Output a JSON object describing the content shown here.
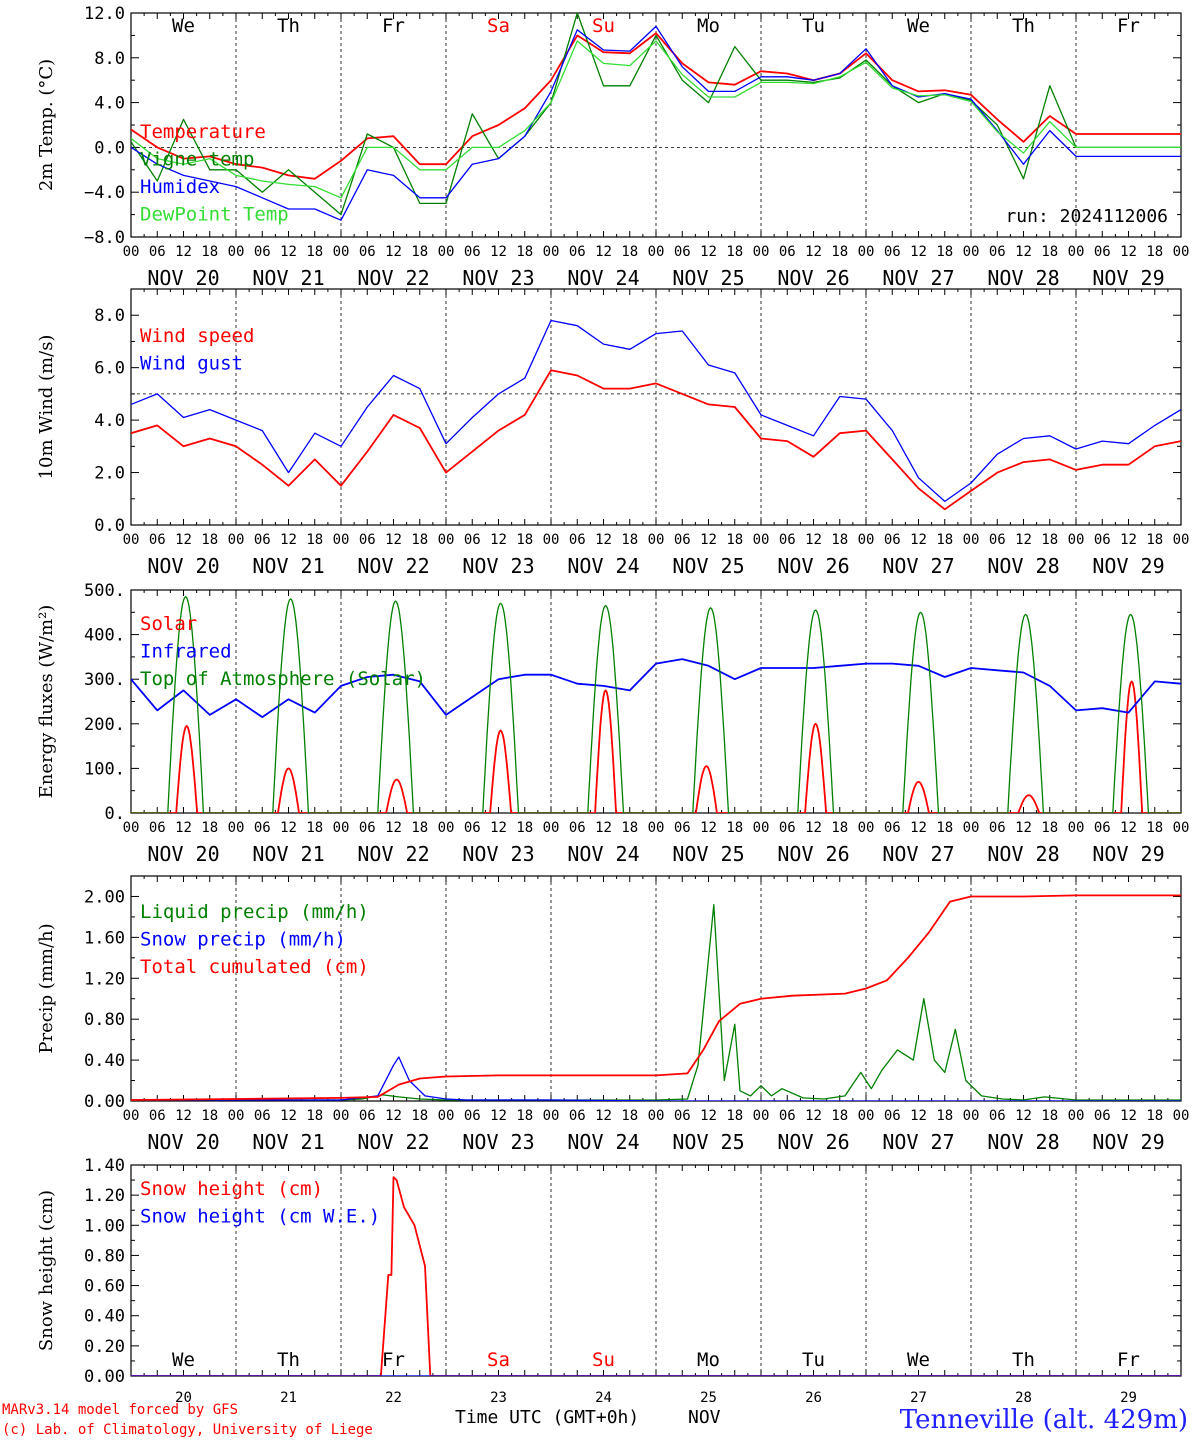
{
  "colors": {
    "red": "#ff0000",
    "green": "#008000",
    "blue": "#0000ff",
    "lime": "#33dd33",
    "axis": "#000000",
    "station": "#2020ff"
  },
  "x_axis": {
    "hour_ticks": [
      "00",
      "06",
      "12",
      "18"
    ],
    "date_labels": [
      "NOV 20",
      "NOV 21",
      "NOV 22",
      "NOV 23",
      "NOV 24",
      "NOV 25",
      "NOV 26",
      "NOV 27",
      "NOV 28",
      "NOV 29"
    ],
    "weekdays": [
      "We",
      "Th",
      "Fr",
      "Sa",
      "Su",
      "Mo",
      "Tu",
      "We",
      "Th",
      "Fr"
    ],
    "weekend": [
      false,
      false,
      false,
      true,
      true,
      false,
      false,
      false,
      false,
      false
    ],
    "day_numbers": [
      "20",
      "21",
      "22",
      "23",
      "24",
      "25",
      "26",
      "27",
      "28",
      "29"
    ],
    "xlabel": "Time UTC (GMT+0h)",
    "month": "NOV"
  },
  "footer": {
    "model": "MARv3.14 model forced by GFS",
    "credit": "(c) Lab. of Climatology, University of Liege",
    "station": "Tenneville (alt. 429m)"
  },
  "chart_data": [
    {
      "type": "line",
      "ylabel": "2m Temp. (°C)",
      "yticks": [
        "12.0",
        "8.0",
        "4.0",
        "0.0",
        "−4.0",
        "−8.0"
      ],
      "ylim": [
        -8,
        12
      ],
      "reference_line": 0,
      "annotation": "run: 2024112006",
      "series": [
        {
          "name": "Temperature",
          "color": "#ff0000",
          "x_days": [
            0,
            0.25,
            0.5,
            0.75,
            1,
            1.25,
            1.5,
            1.75,
            2,
            2.25,
            2.5,
            2.75,
            3,
            3.25,
            3.5,
            3.75,
            4,
            4.25,
            4.5,
            4.75,
            5,
            5.25,
            5.5,
            5.75,
            6,
            6.25,
            6.5,
            6.75,
            7,
            7.25,
            7.5,
            7.75,
            8,
            8.25,
            8.5,
            8.75,
            9,
            9.25,
            9.5,
            9.75,
            10
          ],
          "values": [
            1.6,
            0,
            -1,
            -0.8,
            -1.5,
            -1.8,
            -2.5,
            -2.8,
            -1.2,
            0.8,
            1,
            -1.5,
            -1.5,
            1,
            2,
            3.5,
            6,
            10,
            8.5,
            8.4,
            10.2,
            7.5,
            5.8,
            5.6,
            6.8,
            6.6,
            6,
            6.6,
            8.4,
            6,
            5,
            5.1,
            4.7,
            2.5,
            0.5,
            2.8,
            1.2,
            1.2,
            1.2,
            1.2,
            1.2
          ]
        },
        {
          "name": "Vigne temp",
          "color": "#008000",
          "x_days": [
            0,
            0.25,
            0.5,
            0.75,
            1,
            1.25,
            1.5,
            1.75,
            2,
            2.25,
            2.5,
            2.75,
            3,
            3.25,
            3.5,
            3.75,
            4,
            4.25,
            4.5,
            4.75,
            5,
            5.25,
            5.5,
            5.75,
            6,
            6.25,
            6.5,
            6.75,
            7,
            7.25,
            7.5,
            7.75,
            8,
            8.25,
            8.5,
            8.75,
            9,
            9.25,
            9.5,
            9.75,
            10
          ],
          "values": [
            0.5,
            -3,
            2.5,
            -2,
            -2,
            -4,
            -2,
            -4,
            -6,
            1.2,
            0,
            -5,
            -5,
            3,
            -1,
            1,
            4,
            12,
            5.5,
            5.5,
            10,
            6,
            4,
            9,
            6,
            6,
            5.8,
            6.2,
            7.8,
            5.5,
            4,
            4.8,
            4.2,
            2,
            -2.8,
            5.5,
            0,
            0,
            0,
            0,
            0
          ]
        },
        {
          "name": "Humidex",
          "color": "#0000ff",
          "x_days": [
            0,
            0.25,
            0.5,
            0.75,
            1,
            1.25,
            1.5,
            1.75,
            2,
            2.25,
            2.5,
            2.75,
            3,
            3.25,
            3.5,
            3.75,
            4,
            4.25,
            4.5,
            4.75,
            5,
            5.25,
            5.5,
            5.75,
            6,
            6.25,
            6.5,
            6.75,
            7,
            7.25,
            7.5,
            7.75,
            8,
            8.25,
            8.5,
            8.75,
            9,
            9.25,
            9.5,
            9.75,
            10
          ],
          "values": [
            0,
            -1.5,
            -2.5,
            -3,
            -3.5,
            -4.5,
            -5.5,
            -5.5,
            -6.5,
            -2,
            -2.5,
            -4.5,
            -4.5,
            -1.5,
            -1,
            1,
            5,
            10.5,
            8.7,
            8.6,
            10.8,
            7.2,
            5,
            5,
            6.3,
            6.3,
            6,
            6.6,
            8.8,
            5.5,
            4.5,
            4.8,
            4.3,
            1.5,
            -1.5,
            1.5,
            -0.8,
            -0.8,
            -0.8,
            -0.8,
            -0.8
          ]
        },
        {
          "name": "DewPoint Temp",
          "color": "#33dd33",
          "x_days": [
            0,
            0.25,
            0.5,
            0.75,
            1,
            1.25,
            1.5,
            1.75,
            2,
            2.25,
            2.5,
            2.75,
            3,
            3.25,
            3.5,
            3.75,
            4,
            4.25,
            4.5,
            4.75,
            5,
            5.25,
            5.5,
            5.75,
            6,
            6.25,
            6.5,
            6.75,
            7,
            7.25,
            7.5,
            7.75,
            8,
            8.25,
            8.5,
            8.75,
            9,
            9.25,
            9.5,
            9.75,
            10
          ],
          "values": [
            0.8,
            -1,
            -1.5,
            -1,
            -2.5,
            -3,
            -3.3,
            -3.5,
            -4.5,
            0,
            0,
            -2,
            -2,
            0,
            0,
            1.5,
            4,
            9.5,
            7.5,
            7.3,
            9.5,
            6.5,
            4.5,
            4.5,
            5.8,
            5.8,
            5.7,
            6.3,
            7.6,
            5.3,
            4.6,
            4.7,
            4.1,
            1.4,
            -0.5,
            2.3,
            0,
            0,
            0,
            0,
            0
          ]
        }
      ]
    },
    {
      "type": "line",
      "ylabel": "10m Wind (m/s)",
      "yticks": [
        "8.0",
        "6.0",
        "4.0",
        "2.0",
        "0.0"
      ],
      "ylim": [
        0,
        9
      ],
      "reference_line": 5,
      "series": [
        {
          "name": "Wind speed",
          "color": "#ff0000",
          "x_days": [
            0,
            0.25,
            0.5,
            0.75,
            1,
            1.25,
            1.5,
            1.75,
            2,
            2.25,
            2.5,
            2.75,
            3,
            3.25,
            3.5,
            3.75,
            4,
            4.25,
            4.5,
            4.75,
            5,
            5.25,
            5.5,
            5.75,
            6,
            6.25,
            6.5,
            6.75,
            7,
            7.25,
            7.5,
            7.75,
            8,
            8.25,
            8.5,
            8.75,
            9,
            9.25,
            9.5,
            9.75,
            10
          ],
          "values": [
            3.5,
            3.8,
            3,
            3.3,
            3,
            2.3,
            1.5,
            2.5,
            1.5,
            2.8,
            4.2,
            3.7,
            2,
            2.8,
            3.6,
            4.2,
            5.9,
            5.7,
            5.2,
            5.2,
            5.4,
            5,
            4.6,
            4.5,
            3.3,
            3.2,
            2.6,
            3.5,
            3.6,
            2.5,
            1.4,
            0.6,
            1.3,
            2,
            2.4,
            2.5,
            2.1,
            2.3,
            2.3,
            3,
            3.2
          ]
        },
        {
          "name": "Wind gust",
          "color": "#0000ff",
          "x_days": [
            0,
            0.25,
            0.5,
            0.75,
            1,
            1.25,
            1.5,
            1.75,
            2,
            2.25,
            2.5,
            2.75,
            3,
            3.25,
            3.5,
            3.75,
            4,
            4.25,
            4.5,
            4.75,
            5,
            5.25,
            5.5,
            5.75,
            6,
            6.25,
            6.5,
            6.75,
            7,
            7.25,
            7.5,
            7.75,
            8,
            8.25,
            8.5,
            8.75,
            9,
            9.25,
            9.5,
            9.75,
            10
          ],
          "values": [
            4.6,
            5,
            4.1,
            4.4,
            4,
            3.6,
            2,
            3.5,
            3,
            4.5,
            5.7,
            5.2,
            3.1,
            4.1,
            5,
            5.6,
            7.8,
            7.6,
            6.9,
            6.7,
            7.3,
            7.4,
            6.1,
            5.8,
            4.2,
            3.8,
            3.4,
            4.9,
            4.8,
            3.6,
            1.8,
            0.9,
            1.6,
            2.7,
            3.3,
            3.4,
            2.9,
            3.2,
            3.1,
            3.8,
            4.4
          ]
        }
      ]
    },
    {
      "type": "line",
      "ylabel": "Energy fluxes (W/m²)",
      "yticks": [
        "500.",
        "400.",
        "300.",
        "200.",
        "100.",
        "0."
      ],
      "ylim": [
        0,
        500
      ],
      "series": [
        {
          "name": "Solar",
          "color": "#ff0000",
          "peak_times_days": [
            0.53,
            1.5,
            2.53,
            3.52,
            4.52,
            5.48,
            6.52,
            7.5,
            8.55,
            9.53
          ],
          "peaks": [
            195,
            100,
            75,
            185,
            275,
            105,
            200,
            70,
            40,
            295
          ],
          "half_width_days": 0.1
        },
        {
          "name": "Infrared",
          "color": "#0000ff",
          "x_days": [
            0,
            0.25,
            0.5,
            0.75,
            1,
            1.25,
            1.5,
            1.75,
            2,
            2.25,
            2.5,
            2.75,
            3,
            3.25,
            3.5,
            3.75,
            4,
            4.25,
            4.5,
            4.75,
            5,
            5.25,
            5.5,
            5.75,
            6,
            6.25,
            6.5,
            6.75,
            7,
            7.25,
            7.5,
            7.75,
            8,
            8.25,
            8.5,
            8.75,
            9,
            9.25,
            9.5,
            9.75,
            10
          ],
          "values": [
            300,
            230,
            275,
            220,
            255,
            215,
            255,
            225,
            285,
            305,
            310,
            295,
            220,
            260,
            300,
            310,
            310,
            290,
            285,
            275,
            335,
            345,
            330,
            300,
            325,
            325,
            325,
            330,
            335,
            335,
            330,
            305,
            325,
            320,
            315,
            285,
            230,
            235,
            225,
            295,
            290
          ]
        },
        {
          "name": "Top of Atmosphere (Solar)",
          "color": "#008000",
          "peak_times_days": [
            0.52,
            1.52,
            2.52,
            3.52,
            4.52,
            5.52,
            6.52,
            7.52,
            8.52,
            9.52
          ],
          "peaks": [
            485,
            480,
            475,
            470,
            465,
            460,
            455,
            450,
            445,
            445
          ],
          "half_width_days": 0.17
        }
      ]
    },
    {
      "type": "line",
      "ylabel": "Precip (mm/h)",
      "yticks": [
        "2.00",
        "1.60",
        "1.20",
        "0.80",
        "0.40",
        "0.00"
      ],
      "ylim": [
        0,
        2.2
      ],
      "series": [
        {
          "name": "Liquid precip (mm/h)",
          "color": "#008000",
          "x_days": [
            0,
            0.5,
            1,
            1.5,
            2,
            2.2,
            2.4,
            2.55,
            2.75,
            3,
            3.5,
            4,
            4.5,
            5,
            5.3,
            5.4,
            5.55,
            5.65,
            5.75,
            5.8,
            5.9,
            6.0,
            6.1,
            6.2,
            6.4,
            6.6,
            6.8,
            6.95,
            7.05,
            7.15,
            7.3,
            7.45,
            7.55,
            7.65,
            7.75,
            7.85,
            7.95,
            8.1,
            8.3,
            8.5,
            8.7,
            9,
            9.5,
            10
          ],
          "values": [
            0.01,
            0.01,
            0.01,
            0.01,
            0.01,
            0.02,
            0.06,
            0.04,
            0.02,
            0.01,
            0.01,
            0.01,
            0.01,
            0.01,
            0.02,
            0.35,
            1.92,
            0.2,
            0.75,
            0.1,
            0.05,
            0.15,
            0.05,
            0.12,
            0.03,
            0.02,
            0.05,
            0.28,
            0.12,
            0.3,
            0.5,
            0.4,
            1.0,
            0.4,
            0.28,
            0.7,
            0.2,
            0.05,
            0.02,
            0.01,
            0.04,
            0.01,
            0.01,
            0.01
          ]
        },
        {
          "name": "Snow precip (mm/h)",
          "color": "#0000ff",
          "x_days": [
            0,
            1,
            2,
            2.35,
            2.5,
            2.55,
            2.65,
            2.8,
            3.0,
            3.2,
            4,
            5,
            6,
            7,
            8,
            9,
            10
          ],
          "values": [
            0.01,
            0.01,
            0.01,
            0.05,
            0.35,
            0.43,
            0.2,
            0.05,
            0.02,
            0.01,
            0.01,
            0.0,
            0.0,
            0.0,
            0.0,
            0.0,
            0.0
          ]
        },
        {
          "name": "Total cumulated (cm)",
          "color": "#ff0000",
          "x_days": [
            0,
            1,
            2,
            2.35,
            2.55,
            2.75,
            3.0,
            3.5,
            4,
            4.5,
            5,
            5.3,
            5.45,
            5.6,
            5.8,
            6.0,
            6.3,
            6.8,
            7.0,
            7.2,
            7.4,
            7.6,
            7.8,
            8.0,
            8.5,
            9,
            9.5,
            10
          ],
          "values": [
            0.01,
            0.02,
            0.03,
            0.04,
            0.16,
            0.22,
            0.24,
            0.25,
            0.25,
            0.25,
            0.25,
            0.27,
            0.5,
            0.78,
            0.95,
            1.0,
            1.03,
            1.05,
            1.1,
            1.18,
            1.4,
            1.65,
            1.95,
            2.0,
            2.0,
            2.01,
            2.01,
            2.01
          ]
        }
      ]
    },
    {
      "type": "line",
      "ylabel": "Snow height (cm)",
      "yticks": [
        "1.40",
        "1.20",
        "1.00",
        "0.80",
        "0.60",
        "0.40",
        "0.20",
        "0.00"
      ],
      "ylim": [
        0,
        1.4
      ],
      "series": [
        {
          "name": "Snow height (cm)",
          "color": "#ff0000",
          "x_days": [
            0,
            1,
            2,
            2.38,
            2.45,
            2.48,
            2.5,
            2.53,
            2.6,
            2.7,
            2.8,
            2.85,
            2.86,
            3,
            4,
            5,
            6,
            7,
            8,
            9,
            10
          ],
          "values": [
            0,
            0,
            0,
            0,
            0.67,
            0.67,
            1.32,
            1.3,
            1.12,
            1.0,
            0.73,
            0.0,
            0,
            0,
            0,
            0,
            0,
            0,
            0,
            0,
            0
          ]
        },
        {
          "name": "Snow height (cm W.E.)",
          "color": "#0000ff",
          "x_days": [
            0,
            10
          ],
          "values": [
            0,
            0
          ]
        }
      ]
    }
  ]
}
